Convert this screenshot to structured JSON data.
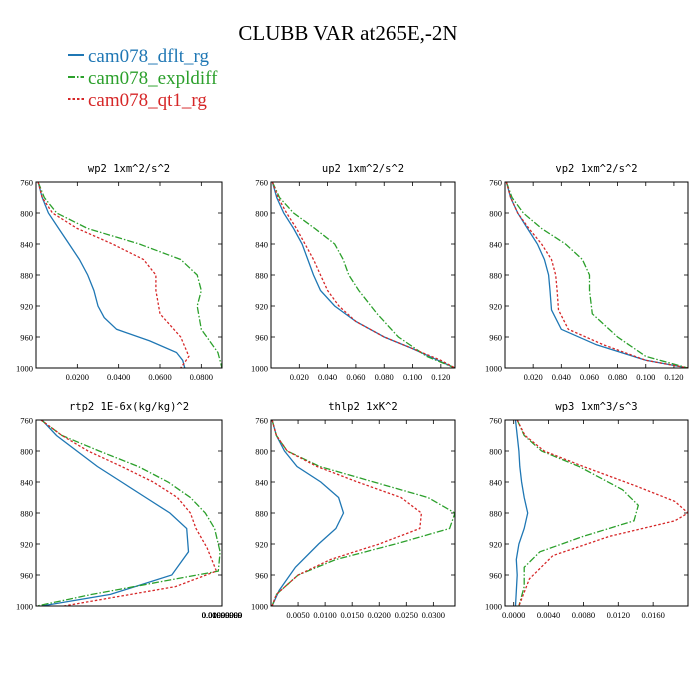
{
  "figure": {
    "title": "CLUBB VAR at265E,-2N",
    "legend": [
      {
        "label": "cam078_dflt_rg",
        "color": "#1f77b4",
        "dash": "solid"
      },
      {
        "label": "cam078_expldiff",
        "color": "#2ca02c",
        "dash": "dashdot"
      },
      {
        "label": "cam078_qt1_rg",
        "color": "#d62728",
        "dash": "dot"
      }
    ]
  },
  "chart_data": [
    {
      "type": "line",
      "title": "wp2  1xm^2/s^2",
      "ylim": [
        760,
        1000
      ],
      "yticks": [
        760,
        800,
        840,
        880,
        920,
        960,
        1000
      ],
      "xlim": [
        0,
        0.09
      ],
      "xticks": [
        0.02,
        0.04,
        0.06,
        0.08
      ],
      "xticklabels": [
        "0.0200",
        "0.0400",
        "0.0600",
        "0.0800"
      ],
      "series": [
        {
          "name": "cam078_dflt_rg",
          "x": [
            0.001,
            0.003,
            0.006,
            0.011,
            0.016,
            0.021,
            0.025,
            0.028,
            0.03,
            0.033,
            0.039,
            0.055,
            0.068,
            0.071,
            0.072
          ],
          "y": [
            760,
            780,
            800,
            820,
            840,
            860,
            880,
            900,
            920,
            935,
            950,
            965,
            980,
            990,
            1000
          ]
        },
        {
          "name": "cam078_expldiff",
          "x": [
            0.001,
            0.004,
            0.01,
            0.025,
            0.05,
            0.07,
            0.078,
            0.08,
            0.078,
            0.08,
            0.088,
            0.09
          ],
          "y": [
            760,
            780,
            800,
            820,
            840,
            860,
            880,
            900,
            920,
            950,
            980,
            1000
          ]
        },
        {
          "name": "cam078_qt1_rg",
          "x": [
            0.001,
            0.003,
            0.008,
            0.02,
            0.037,
            0.052,
            0.058,
            0.058,
            0.06,
            0.07,
            0.074,
            0.07
          ],
          "y": [
            760,
            780,
            800,
            820,
            840,
            860,
            880,
            900,
            930,
            960,
            985,
            1000
          ]
        }
      ]
    },
    {
      "type": "line",
      "title": "up2  1xm^2/s^2",
      "ylim": [
        760,
        1000
      ],
      "yticks": [
        760,
        800,
        840,
        880,
        920,
        960,
        1000
      ],
      "xlim": [
        0,
        0.13
      ],
      "xticks": [
        0.02,
        0.04,
        0.06,
        0.08,
        0.1,
        0.12
      ],
      "xticklabels": [
        "0.020",
        "0.040",
        "0.060",
        "0.080",
        "0.100",
        "0.120"
      ],
      "series": [
        {
          "name": "cam078_dflt_rg",
          "x": [
            0.001,
            0.004,
            0.009,
            0.016,
            0.022,
            0.026,
            0.03,
            0.035,
            0.045,
            0.06,
            0.08,
            0.1,
            0.118,
            0.13
          ],
          "y": [
            760,
            780,
            800,
            820,
            840,
            860,
            880,
            900,
            920,
            940,
            960,
            975,
            990,
            1000
          ]
        },
        {
          "name": "cam078_expldiff",
          "x": [
            0.001,
            0.006,
            0.016,
            0.031,
            0.045,
            0.051,
            0.055,
            0.062,
            0.075,
            0.09,
            0.11,
            0.13
          ],
          "y": [
            760,
            780,
            800,
            820,
            840,
            860,
            880,
            900,
            930,
            960,
            985,
            1000
          ]
        },
        {
          "name": "cam078_qt1_rg",
          "x": [
            0.001,
            0.005,
            0.011,
            0.018,
            0.024,
            0.03,
            0.035,
            0.04,
            0.048,
            0.06,
            0.08,
            0.1,
            0.12,
            0.13
          ],
          "y": [
            760,
            780,
            800,
            820,
            840,
            860,
            880,
            900,
            920,
            940,
            960,
            975,
            990,
            1000
          ]
        }
      ]
    },
    {
      "type": "line",
      "title": "vp2  1xm^2/s^2",
      "ylim": [
        760,
        1000
      ],
      "yticks": [
        760,
        800,
        840,
        880,
        920,
        960,
        1000
      ],
      "xlim": [
        0,
        0.13
      ],
      "xticks": [
        0.02,
        0.04,
        0.06,
        0.08,
        0.1,
        0.12
      ],
      "xticklabels": [
        "0.020",
        "0.040",
        "0.060",
        "0.080",
        "0.100",
        "0.120"
      ],
      "series": [
        {
          "name": "cam078_dflt_rg",
          "x": [
            0.001,
            0.004,
            0.009,
            0.016,
            0.023,
            0.028,
            0.031,
            0.032,
            0.033,
            0.04,
            0.065,
            0.1,
            0.13
          ],
          "y": [
            760,
            780,
            800,
            820,
            840,
            860,
            880,
            900,
            925,
            950,
            970,
            990,
            1000
          ]
        },
        {
          "name": "cam078_expldiff",
          "x": [
            0.001,
            0.005,
            0.013,
            0.026,
            0.043,
            0.055,
            0.06,
            0.06,
            0.062,
            0.08,
            0.1,
            0.13
          ],
          "y": [
            760,
            780,
            800,
            820,
            840,
            860,
            880,
            900,
            930,
            960,
            985,
            1000
          ]
        },
        {
          "name": "cam078_qt1_rg",
          "x": [
            0.001,
            0.004,
            0.009,
            0.017,
            0.026,
            0.033,
            0.036,
            0.037,
            0.038,
            0.045,
            0.07,
            0.1,
            0.13
          ],
          "y": [
            760,
            780,
            800,
            820,
            840,
            860,
            880,
            900,
            925,
            950,
            970,
            990,
            1000
          ]
        }
      ]
    },
    {
      "type": "line",
      "title": "rtp2  1E-6x(kg/kg)^2",
      "ylim": [
        760,
        1000
      ],
      "yticks": [
        760,
        800,
        840,
        880,
        920,
        960,
        1000
      ],
      "xlim": [
        0,
        0.0100000098
      ],
      "xticks": [
        0.00999999,
        0.009999992,
        0.009999994,
        0.009999996,
        0.009999998,
        0.01,
        0.010000002,
        0.010000004,
        0.010000006,
        0.010000008
      ],
      "xticklabels": [
        "0.00999999",
        "0.00999999",
        "0.00999999",
        "0.00999999",
        "0.00999999",
        "0.01000000",
        "0.01000000",
        "0.01000000",
        "0.01000000",
        "0.01000000"
      ],
      "series": [
        {
          "name": "cam078_dflt_rg",
          "x": [
            0.00032,
            0.0011,
            0.0022,
            0.0033,
            0.0046,
            0.0059,
            0.0072,
            0.0081,
            0.0082,
            0.0073,
            0.004,
            0.0003
          ],
          "y": [
            760,
            780,
            800,
            820,
            840,
            860,
            880,
            900,
            930,
            960,
            985,
            1000
          ]
        },
        {
          "name": "cam078_expldiff",
          "x": [
            0.00027,
            0.0014,
            0.0034,
            0.0055,
            0.0071,
            0.0083,
            0.0091,
            0.0096,
            0.0099,
            0.0098,
            0.003,
            5e-05
          ],
          "y": [
            760,
            780,
            800,
            820,
            840,
            860,
            880,
            900,
            930,
            955,
            985,
            1000
          ]
        },
        {
          "name": "cam078_qt1_rg",
          "x": [
            0.00027,
            0.0014,
            0.0028,
            0.0046,
            0.0063,
            0.0076,
            0.0083,
            0.0086,
            0.0092,
            0.0097,
            0.0075,
            0.0015
          ],
          "y": [
            760,
            780,
            800,
            820,
            840,
            860,
            880,
            900,
            925,
            955,
            975,
            1000
          ]
        }
      ]
    },
    {
      "type": "line",
      "title": "thlp2  1xK^2",
      "ylim": [
        760,
        1000
      ],
      "yticks": [
        760,
        800,
        840,
        880,
        920,
        960,
        1000
      ],
      "xlim": [
        0,
        0.034
      ],
      "xticks": [
        0.005,
        0.01,
        0.015,
        0.02,
        0.025,
        0.03
      ],
      "xticklabels": [
        "0.0050",
        "0.0100",
        "0.0150",
        "0.0200",
        "0.0250",
        "0.0300"
      ],
      "series": [
        {
          "name": "cam078_dflt_rg",
          "x": [
            0.0002,
            0.001,
            0.0025,
            0.0048,
            0.0092,
            0.0125,
            0.0134,
            0.012,
            0.0088,
            0.0045,
            0.0015,
            0.0002
          ],
          "y": [
            760,
            780,
            800,
            820,
            840,
            860,
            880,
            900,
            920,
            950,
            980,
            1000
          ]
        },
        {
          "name": "cam078_expldiff",
          "x": [
            0.0002,
            0.001,
            0.003,
            0.009,
            0.019,
            0.029,
            0.034,
            0.033,
            0.023,
            0.012,
            0.005,
            0.001,
            0.0002
          ],
          "y": [
            760,
            780,
            800,
            820,
            840,
            860,
            880,
            900,
            920,
            940,
            960,
            985,
            1000
          ]
        },
        {
          "name": "cam078_qt1_rg",
          "x": [
            0.0002,
            0.001,
            0.003,
            0.0085,
            0.016,
            0.024,
            0.0278,
            0.0275,
            0.02,
            0.011,
            0.005,
            0.001,
            0.0002
          ],
          "y": [
            760,
            780,
            800,
            820,
            840,
            860,
            880,
            900,
            920,
            940,
            960,
            985,
            1000
          ]
        }
      ]
    },
    {
      "type": "line",
      "title": "wp3  1xm^3/s^3",
      "ylim": [
        760,
        1000
      ],
      "yticks": [
        760,
        800,
        840,
        880,
        920,
        960,
        1000
      ],
      "xlim": [
        -0.001,
        0.02
      ],
      "xticks": [
        0,
        0.004,
        0.008,
        0.012,
        0.016
      ],
      "xticklabels": [
        "0.0000",
        "0.0040",
        "0.0080",
        "0.0120",
        "0.0160"
      ],
      "series": [
        {
          "name": "cam078_dflt_rg",
          "x": [
            0.0002,
            0.0004,
            0.0006,
            0.0007,
            0.0009,
            0.0012,
            0.0016,
            0.0012,
            0.0006,
            0.0003,
            0.0004,
            0.0002
          ],
          "y": [
            760,
            780,
            800,
            820,
            840,
            860,
            880,
            900,
            920,
            940,
            960,
            1000
          ]
        },
        {
          "name": "cam078_expldiff",
          "x": [
            0.0004,
            0.0012,
            0.0032,
            0.0075,
            0.0125,
            0.0143,
            0.0138,
            0.008,
            0.003,
            0.0012,
            0.0012,
            0.0006
          ],
          "y": [
            760,
            780,
            800,
            820,
            850,
            870,
            890,
            910,
            930,
            950,
            975,
            1000
          ]
        },
        {
          "name": "cam078_qt1_rg",
          "x": [
            0.0004,
            0.0013,
            0.0035,
            0.008,
            0.014,
            0.0185,
            0.02,
            0.0185,
            0.011,
            0.0045,
            0.0018,
            0.0006
          ],
          "y": [
            760,
            780,
            800,
            820,
            845,
            865,
            880,
            890,
            910,
            935,
            965,
            1000
          ]
        }
      ]
    }
  ]
}
